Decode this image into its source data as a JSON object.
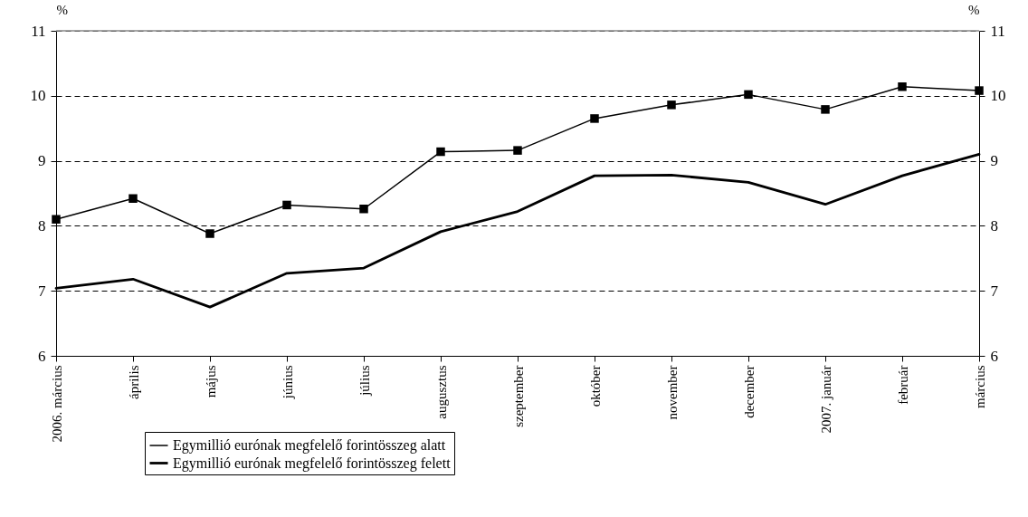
{
  "chart_data": {
    "type": "line",
    "ylabel": "%",
    "y2label": "%",
    "categories": [
      "2006. március",
      "április",
      "május",
      "június",
      "július",
      "augusztus",
      "szeptember",
      "október",
      "november",
      "december",
      "2007. január",
      "február",
      "március"
    ],
    "series": [
      {
        "name": "Egymillió eurónak megfelelő forintösszeg alatt",
        "color": "#000000",
        "marker": "square",
        "values": [
          8.1,
          8.42,
          7.88,
          8.32,
          8.26,
          9.14,
          9.16,
          9.65,
          9.86,
          10.02,
          9.79,
          10.14,
          10.08
        ]
      },
      {
        "name": "Egymillió eurónak megfelelő forintösszeg felett",
        "color": "#000000",
        "marker": "none",
        "values": [
          7.04,
          7.18,
          6.75,
          7.27,
          7.35,
          7.91,
          8.22,
          8.77,
          8.78,
          8.67,
          8.33,
          8.77,
          9.1
        ]
      }
    ],
    "ylim": [
      6,
      11
    ],
    "yticks": [
      6,
      7,
      8,
      9,
      10,
      11
    ],
    "y2lim": [
      6,
      11
    ],
    "y2ticks": [
      6,
      7,
      8,
      9,
      10,
      11
    ],
    "grid": "y",
    "legend": "bottom",
    "line_style": "solid"
  }
}
